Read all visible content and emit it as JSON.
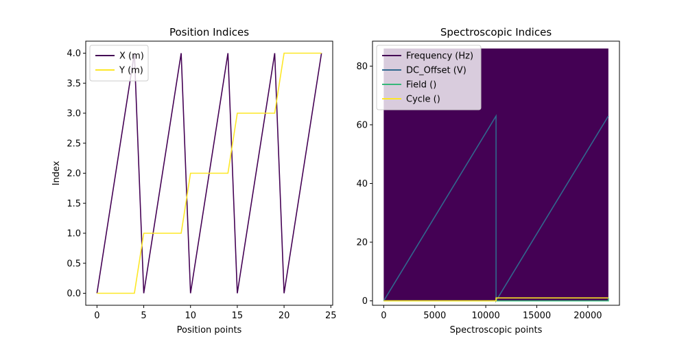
{
  "chart_data": [
    {
      "type": "line",
      "title": "Position Indices",
      "xlabel": "Position points",
      "ylabel": "Index",
      "xlim": [
        -1.2,
        25.2
      ],
      "ylim": [
        -0.2,
        4.2
      ],
      "xticks": [
        0,
        5,
        10,
        15,
        20,
        25
      ],
      "yticks": [
        0.0,
        0.5,
        1.0,
        1.5,
        2.0,
        2.5,
        3.0,
        3.5,
        4.0
      ],
      "ytick_labels": [
        "0.0",
        "0.5",
        "1.0",
        "1.5",
        "2.0",
        "2.5",
        "3.0",
        "3.5",
        "4.0"
      ],
      "legend_position": "top-left",
      "grid": false,
      "x": [
        0,
        1,
        2,
        3,
        4,
        5,
        6,
        7,
        8,
        9,
        10,
        11,
        12,
        13,
        14,
        15,
        16,
        17,
        18,
        19,
        20,
        21,
        22,
        23,
        24
      ],
      "series": [
        {
          "name": "X (m)",
          "color": "#440154",
          "values": [
            0,
            1,
            2,
            3,
            4,
            0,
            1,
            2,
            3,
            4,
            0,
            1,
            2,
            3,
            4,
            0,
            1,
            2,
            3,
            4,
            0,
            1,
            2,
            3,
            4
          ]
        },
        {
          "name": "Y (m)",
          "color": "#fde725",
          "values": [
            0,
            0,
            0,
            0,
            0,
            1,
            1,
            1,
            1,
            1,
            2,
            2,
            2,
            2,
            2,
            3,
            3,
            3,
            3,
            3,
            4,
            4,
            4,
            4,
            4
          ]
        }
      ]
    },
    {
      "type": "line",
      "title": "Spectroscopic Indices",
      "xlabel": "Spectroscopic points",
      "ylabel": "",
      "xlim": [
        -1100,
        23100
      ],
      "ylim": [
        -1.5,
        88.5
      ],
      "xticks": [
        0,
        5000,
        10000,
        15000,
        20000
      ],
      "yticks": [
        0,
        20,
        40,
        60,
        80
      ],
      "legend_position": "top-left",
      "grid": false,
      "series": [
        {
          "name": "Frequency (Hz)",
          "color": "#440154",
          "pattern": "oscillating",
          "range": [
            0,
            86
          ],
          "x_range": [
            0,
            22015
          ],
          "note_fill": true
        },
        {
          "name": "DC_Offset (V)",
          "color": "#31688e",
          "pattern": "ramp",
          "points": [
            [
              0,
              0
            ],
            [
              11007,
              63
            ],
            [
              11008,
              0
            ],
            [
              22015,
              63
            ]
          ]
        },
        {
          "name": "Field ()",
          "color": "#35b779",
          "pattern": "step",
          "points": [
            [
              0,
              0
            ],
            [
              22015,
              0
            ],
            [
              22015,
              1
            ]
          ]
        },
        {
          "name": "Cycle ()",
          "color": "#fde725",
          "pattern": "step",
          "points": [
            [
              0,
              0
            ],
            [
              11007,
              0
            ],
            [
              11008,
              1
            ],
            [
              22015,
              1
            ]
          ]
        }
      ]
    }
  ]
}
